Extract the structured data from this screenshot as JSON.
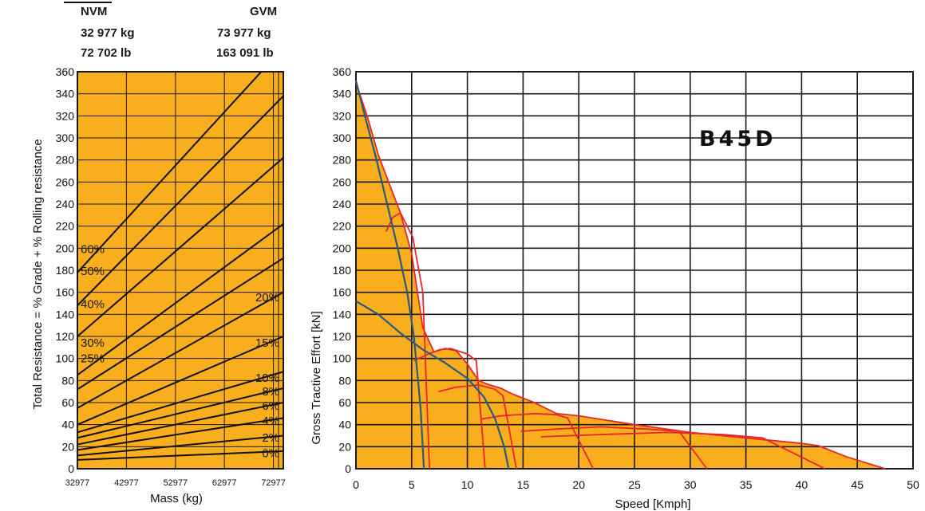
{
  "header": {
    "nvm_label": "NVM",
    "gvm_label": "GVM",
    "nvm_kg": "32 977 kg",
    "gvm_kg": "73 977 kg",
    "nvm_lb": "72 702 lb",
    "gvm_lb": "163 091 lb"
  },
  "colors": {
    "fill": "#F9AE1E",
    "grid": "#1a1a1a",
    "red": "#E8262A",
    "blue": "#2B5A7E"
  },
  "chart_data": [
    {
      "type": "line",
      "id": "resistance",
      "ylabel": "Total Resistance = % Grade + % Rolling resistance",
      "xlabel": "Mass (kg)",
      "xlim": [
        32977,
        75000
      ],
      "ylim": [
        0,
        360
      ],
      "x_ticks": [
        32977,
        42977,
        52977,
        62977,
        72977
      ],
      "x_tick_labels": [
        "32977",
        "42977",
        "52977",
        "62977",
        "72977"
      ],
      "y_ticks": [
        0,
        20,
        40,
        60,
        80,
        100,
        120,
        140,
        160,
        180,
        200,
        220,
        240,
        260,
        280,
        300,
        320,
        340,
        360
      ],
      "grid": true,
      "series": [
        {
          "name": "60%",
          "x": [
            32977,
            70500
          ],
          "y": [
            178,
            360
          ]
        },
        {
          "name": "50%",
          "x": [
            32977,
            75000
          ],
          "y": [
            148,
            338
          ]
        },
        {
          "name": "40%",
          "x": [
            32977,
            75000
          ],
          "y": [
            120,
            282
          ]
        },
        {
          "name": "30%",
          "x": [
            32977,
            75000
          ],
          "y": [
            85,
            222
          ]
        },
        {
          "name": "25%",
          "x": [
            32977,
            75000
          ],
          "y": [
            72,
            191
          ]
        },
        {
          "name": "20%",
          "x": [
            32977,
            75000
          ],
          "y": [
            55,
            160
          ]
        },
        {
          "name": "15%",
          "x": [
            32977,
            75000
          ],
          "y": [
            40,
            120
          ]
        },
        {
          "name": "10%",
          "x": [
            32977,
            75000
          ],
          "y": [
            33,
            88
          ]
        },
        {
          "name": "8%",
          "x": [
            32977,
            75000
          ],
          "y": [
            28,
            73
          ]
        },
        {
          "name": "6%",
          "x": [
            32977,
            75000
          ],
          "y": [
            22,
            60
          ]
        },
        {
          "name": "4%",
          "x": [
            32977,
            75000
          ],
          "y": [
            17,
            46
          ]
        },
        {
          "name": "2%",
          "x": [
            32977,
            75000
          ],
          "y": [
            12,
            30
          ]
        },
        {
          "name": "0%",
          "x": [
            32977,
            75000
          ],
          "y": [
            8,
            16
          ]
        }
      ]
    },
    {
      "type": "line",
      "id": "rimpull",
      "title": "B45D",
      "ylabel": "Gross Tractive Effort [kN]",
      "xlabel": "Speed [Kmph]",
      "xlim": [
        0,
        50
      ],
      "ylim": [
        0,
        360
      ],
      "x_ticks": [
        0,
        5,
        10,
        15,
        20,
        25,
        30,
        35,
        40,
        45,
        50
      ],
      "y_ticks": [
        0,
        20,
        40,
        60,
        80,
        100,
        120,
        140,
        160,
        180,
        200,
        220,
        240,
        260,
        280,
        300,
        320,
        340,
        360
      ],
      "grid": true,
      "envelope": {
        "x": [
          0,
          0,
          1,
          2,
          3,
          4,
          5,
          6,
          7,
          8,
          9,
          10,
          11,
          12,
          13,
          14,
          16,
          18,
          20,
          25,
          30,
          35,
          40,
          41.5,
          44,
          47.5
        ],
        "y": [
          0,
          350,
          320,
          285,
          258,
          232,
          195,
          128,
          106,
          109,
          107,
          95,
          80,
          76,
          73,
          68,
          60,
          50,
          48,
          40,
          33,
          28,
          23,
          21,
          11,
          0
        ]
      },
      "red_curves": [
        {
          "x": [
            2.7,
            3.3,
            4.0,
            5.1,
            6.0,
            6.6
          ],
          "y": [
            215,
            228,
            232,
            210,
            160,
            0
          ]
        },
        {
          "x": [
            5.2,
            6.5,
            7.5,
            8.5,
            10.0,
            10.8,
            11.6
          ],
          "y": [
            98,
            104,
            108,
            109,
            104,
            98,
            0
          ]
        },
        {
          "x": [
            7.4,
            9.0,
            11.0,
            12.5,
            13.2,
            14.4
          ],
          "y": [
            70,
            74,
            76,
            72,
            66,
            0
          ]
        },
        {
          "x": [
            11.2,
            13.0,
            16.0,
            18.0,
            19.0,
            21.3
          ],
          "y": [
            45,
            48,
            50,
            49,
            46,
            0
          ]
        },
        {
          "x": [
            14.8,
            18.0,
            22.0,
            26.0,
            29.0,
            31.5
          ],
          "y": [
            34,
            36,
            38,
            36,
            34,
            0
          ]
        },
        {
          "x": [
            16.6,
            22.0,
            28.0,
            33.0,
            36.5,
            42.1
          ],
          "y": [
            29,
            31,
            33,
            31,
            28,
            0
          ]
        }
      ],
      "blue_curves": [
        {
          "x": [
            0,
            0.8,
            1.8,
            2.8,
            3.8,
            4.6,
            5.2,
            5.8,
            6.1
          ],
          "y": [
            352,
            320,
            282,
            240,
            198,
            160,
            120,
            55,
            0
          ]
        },
        {
          "x": [
            0,
            2.0,
            4.0,
            6.0,
            8.0,
            10.0,
            11.5,
            12.5,
            13.3,
            13.7
          ],
          "y": [
            152,
            140,
            123,
            108,
            96,
            82,
            65,
            45,
            20,
            0
          ]
        }
      ]
    }
  ]
}
